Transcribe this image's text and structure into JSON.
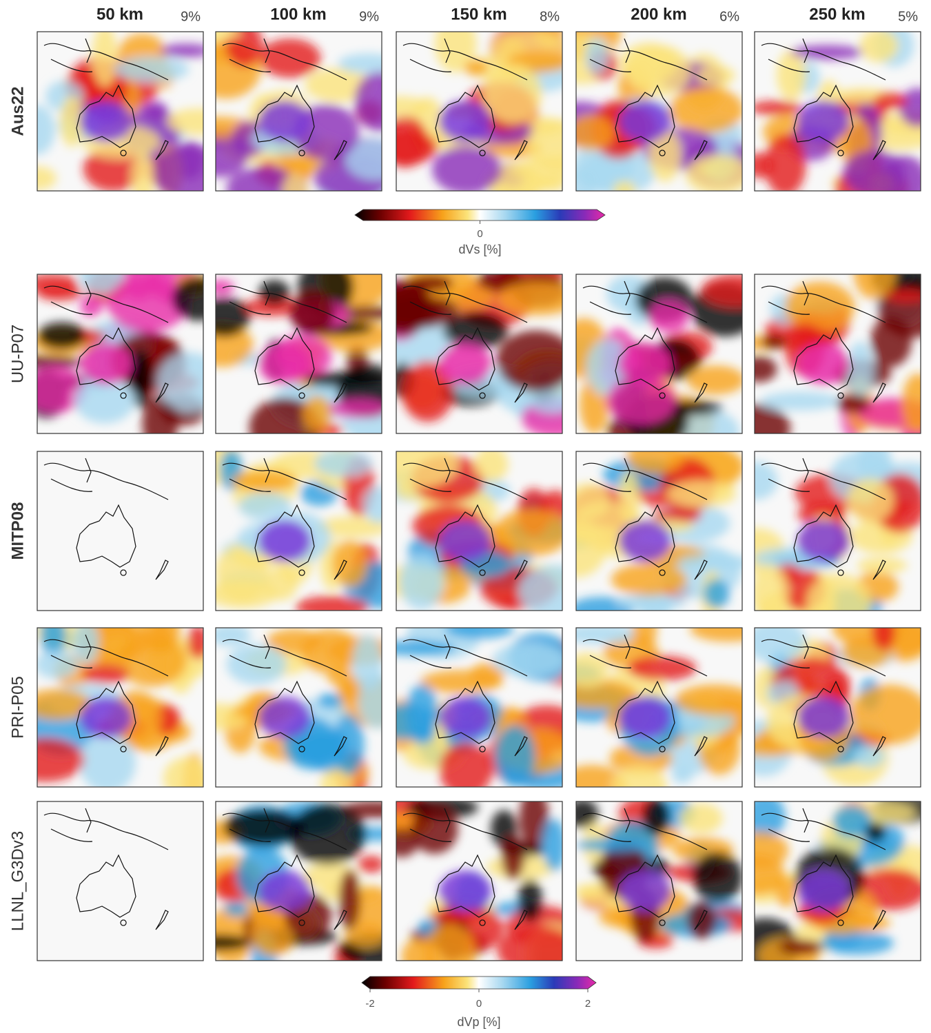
{
  "columns": [
    {
      "depth": "50 km",
      "scale": "9%"
    },
    {
      "depth": "100 km",
      "scale": "9%"
    },
    {
      "depth": "150 km",
      "scale": "8%"
    },
    {
      "depth": "200 km",
      "scale": "6%"
    },
    {
      "depth": "250 km",
      "scale": "5%"
    }
  ],
  "rows": [
    "Aus22",
    "UU-P07",
    "MITP08",
    "PRI-P05",
    "LLNL_G3Dv3"
  ],
  "colorbars": [
    {
      "ticks": [
        0
      ],
      "label": "dVs [%]"
    },
    {
      "ticks": [
        -2,
        0,
        2
      ],
      "label": "dVp [%]"
    }
  ]
}
